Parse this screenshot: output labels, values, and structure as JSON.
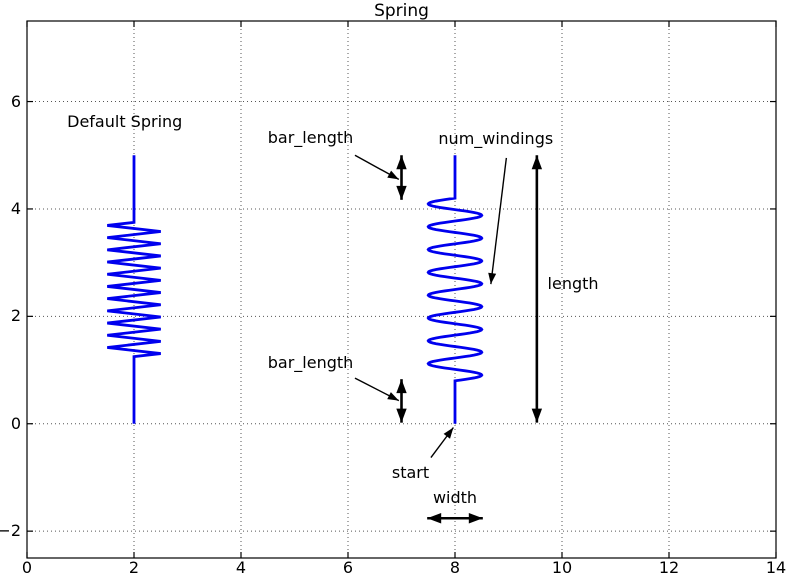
{
  "figure": {
    "background": "#ffffff",
    "spring_color": "#0000ee",
    "annotation_color": "#000000",
    "grid_color": "#555555"
  },
  "chart_data": {
    "type": "line",
    "title": "Spring",
    "xlabel": "",
    "ylabel": "",
    "xlim": [
      0,
      14
    ],
    "ylim": [
      -2.5,
      7.5
    ],
    "grid": "dotted",
    "legend": "none",
    "xticks": [
      {
        "v": 0,
        "label": "0"
      },
      {
        "v": 2,
        "label": "2"
      },
      {
        "v": 4,
        "label": "4"
      },
      {
        "v": 6,
        "label": "6"
      },
      {
        "v": 8,
        "label": "8"
      },
      {
        "v": 10,
        "label": "10"
      },
      {
        "v": 12,
        "label": "12"
      },
      {
        "v": 14,
        "label": "14"
      }
    ],
    "yticks": [
      {
        "v": 6,
        "label": "6"
      },
      {
        "v": 4,
        "label": "4"
      },
      {
        "v": 2,
        "label": "2"
      },
      {
        "v": 0,
        "label": "0"
      },
      {
        "v": -2,
        "label": "−2"
      }
    ],
    "springs": [
      {
        "name": "default-spring",
        "x": 2,
        "start": 0,
        "length": 5,
        "num_windings": 11,
        "bar_length": 1.25,
        "width": 1,
        "shape": "zigzag"
      },
      {
        "name": "annotated-spring",
        "x": 8,
        "start": 0,
        "length": 5,
        "num_windings": 8,
        "bar_length": 0.8,
        "width": 1,
        "shape": "sine"
      }
    ],
    "annotations": [
      {
        "id": "default-spring-label",
        "text": "Default Spring",
        "x": 0.75,
        "y": 5.62,
        "anchor": "left"
      },
      {
        "id": "bar-length-top-label",
        "text": "bar_length",
        "x": 4.5,
        "y": 5.33,
        "anchor": "left"
      },
      {
        "id": "num-windings-label",
        "text": "num_windings",
        "x": 7.69,
        "y": 5.31,
        "anchor": "left"
      },
      {
        "id": "length-label",
        "text": "length",
        "x": 9.73,
        "y": 2.6,
        "anchor": "left"
      },
      {
        "id": "bar-length-bottom-label",
        "text": "bar_length",
        "x": 4.5,
        "y": 1.13,
        "anchor": "left"
      },
      {
        "id": "start-label",
        "text": "start",
        "x": 6.82,
        "y": -0.92,
        "anchor": "left"
      },
      {
        "id": "width-label",
        "text": "width",
        "x": 8.0,
        "y": -1.39,
        "anchor": "center"
      }
    ],
    "pointer_arrows": [
      {
        "id": "bar-length-top-arrow",
        "from": [
          6.13,
          5.0
        ],
        "to": [
          6.95,
          4.55
        ]
      },
      {
        "id": "num-windings-arrow",
        "from": [
          8.96,
          4.95
        ],
        "to": [
          8.67,
          2.6
        ]
      },
      {
        "id": "bar-length-bottom-arrow",
        "from": [
          6.13,
          0.85
        ],
        "to": [
          6.95,
          0.43
        ]
      },
      {
        "id": "start-arrow",
        "from": [
          7.55,
          -0.63
        ],
        "to": [
          7.97,
          -0.07
        ]
      }
    ],
    "double_arrows": [
      {
        "id": "bar-length-top-span",
        "from": [
          7.0,
          4.17
        ],
        "to": [
          7.0,
          5.0
        ]
      },
      {
        "id": "bar-length-bottom-span",
        "from": [
          7.0,
          0.02
        ],
        "to": [
          7.0,
          0.83
        ]
      },
      {
        "id": "length-span",
        "from": [
          9.53,
          0.02
        ],
        "to": [
          9.53,
          5.0
        ]
      },
      {
        "id": "width-span",
        "from": [
          7.48,
          -1.76
        ],
        "to": [
          8.52,
          -1.76
        ]
      }
    ]
  }
}
